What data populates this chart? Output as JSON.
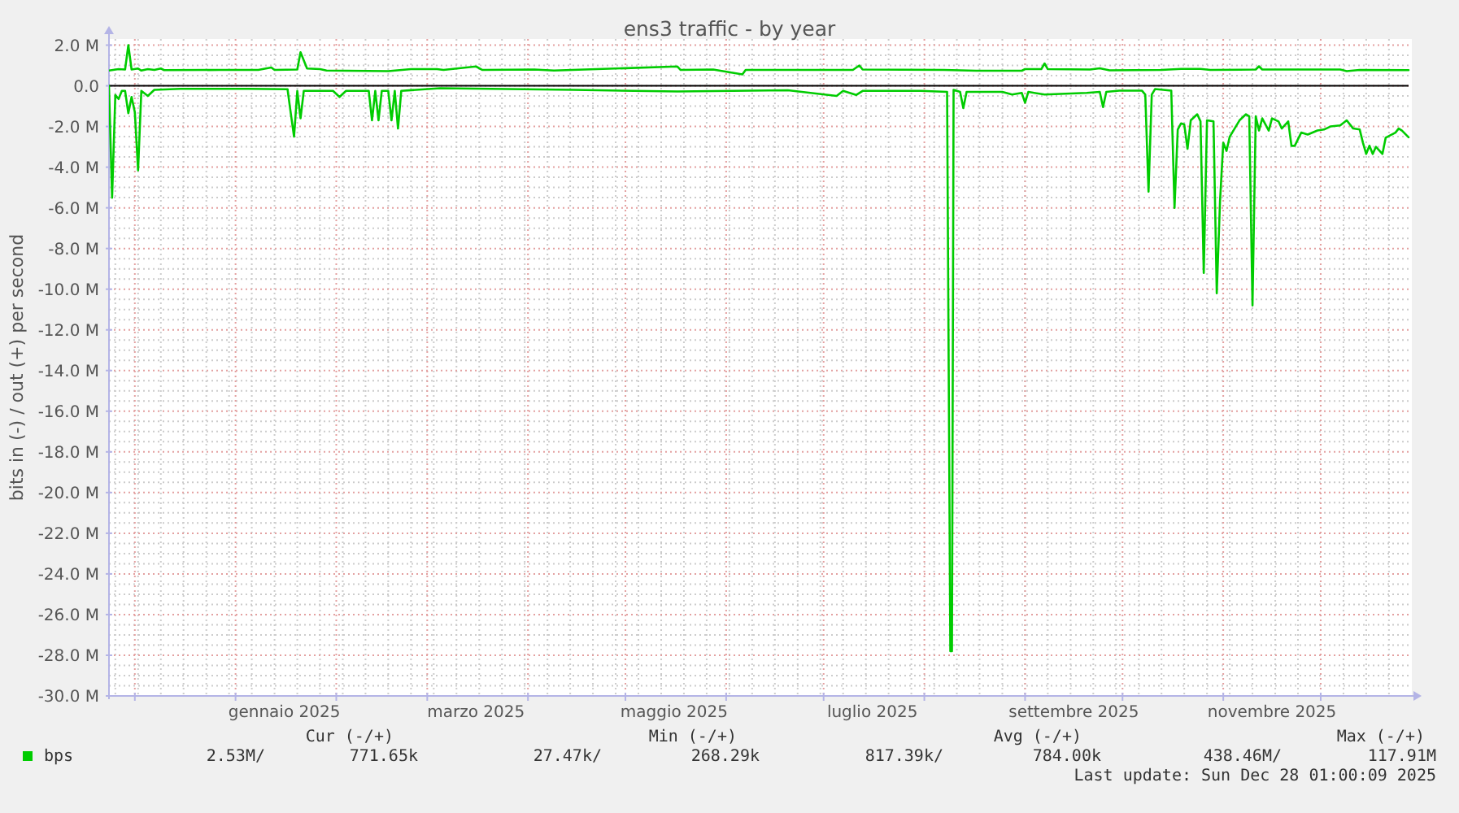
{
  "chart_data": {
    "type": "line",
    "title": "ens3 traffic - by year",
    "ylabel": "bits in (-) / out (+) per second",
    "xlim": [
      "2024-11-23T01:00",
      "2025-12-28T01:00"
    ],
    "xticks": [
      {
        "value": "2024-12-01",
        "label": null
      },
      {
        "value": "2025-01-01",
        "label": null
      },
      {
        "value": "2025-01-16",
        "label": "gennaio 2025"
      },
      {
        "value": "2025-02-01",
        "label": null
      },
      {
        "value": "2025-03-01",
        "label": null
      },
      {
        "value": "2025-03-16",
        "label": "marzo 2025"
      },
      {
        "value": "2025-04-01",
        "label": null
      },
      {
        "value": "2025-05-01",
        "label": null
      },
      {
        "value": "2025-05-16",
        "label": "maggio 2025"
      },
      {
        "value": "2025-06-01",
        "label": null
      },
      {
        "value": "2025-07-01",
        "label": null
      },
      {
        "value": "2025-07-16",
        "label": "luglio 2025"
      },
      {
        "value": "2025-08-01",
        "label": null
      },
      {
        "value": "2025-09-01",
        "label": null
      },
      {
        "value": "2025-09-16",
        "label": "settembre 2025"
      },
      {
        "value": "2025-10-01",
        "label": null
      },
      {
        "value": "2025-11-01",
        "label": null
      },
      {
        "value": "2025-11-16",
        "label": "novembre 2025"
      },
      {
        "value": "2025-12-01",
        "label": null
      }
    ],
    "ylim": [
      -30,
      2.3
    ],
    "yticks": [
      {
        "value": 2,
        "label": "2.0 M"
      },
      {
        "value": 0,
        "label": "0.0"
      },
      {
        "value": -2,
        "label": "-2.0 M"
      },
      {
        "value": -4,
        "label": "-4.0 M"
      },
      {
        "value": -6,
        "label": "-6.0 M"
      },
      {
        "value": -8,
        "label": "-8.0 M"
      },
      {
        "value": -10,
        "label": "-10.0 M"
      },
      {
        "value": -12,
        "label": "-12.0 M"
      },
      {
        "value": -14,
        "label": "-14.0 M"
      },
      {
        "value": -16,
        "label": "-16.0 M"
      },
      {
        "value": -18,
        "label": "-18.0 M"
      },
      {
        "value": -20,
        "label": "-20.0 M"
      },
      {
        "value": -22,
        "label": "-22.0 M"
      },
      {
        "value": -24,
        "label": "-24.0 M"
      },
      {
        "value": -26,
        "label": "-26.0 M"
      },
      {
        "value": -28,
        "label": "-28.0 M"
      },
      {
        "value": -30,
        "label": "-30.0 M"
      }
    ],
    "grid": true,
    "legend": "bottom left",
    "ref_lines": [
      {
        "axis": "y",
        "value": 0,
        "color": "#000000"
      }
    ],
    "annotations": [
      "Cur (-/+)",
      "Min (-/+)",
      "Avg (-/+)",
      "Max (-/+)",
      "2.53M/",
      "771.65k",
      "27.47k/",
      "268.29k",
      "817.39k/",
      "784.00k",
      "438.46M/",
      "117.91M",
      "Last update: Sun Dec 28 01:00:09 2025"
    ],
    "series": [
      {
        "name": "bps",
        "color": "#00cc00",
        "x": [
          "2024-11-23T01:00",
          "2024-11-26",
          "2024-11-28",
          "2024-11-29",
          "2024-11-30",
          "2024-12-02",
          "2024-12-03",
          "2024-12-05",
          "2024-12-07",
          "2024-12-09",
          "2024-12-10",
          "2024-12-27",
          "2025-01-08",
          "2025-01-12",
          "2025-01-13",
          "2025-01-20",
          "2025-01-21",
          "2025-01-23",
          "2025-01-27",
          "2025-01-29",
          "2025-02-17",
          "2025-02-24",
          "2025-03-04",
          "2025-03-06",
          "2025-03-16",
          "2025-03-18",
          "2025-04-03",
          "2025-04-09",
          "2025-05-17",
          "2025-05-18",
          "2025-05-28",
          "2025-06-06",
          "2025-06-07",
          "2025-07-10",
          "2025-07-12",
          "2025-07-13",
          "2025-08-07",
          "2025-08-17",
          "2025-08-31",
          "2025-09-01",
          "2025-09-06",
          "2025-09-07",
          "2025-09-08",
          "2025-09-21",
          "2025-09-24",
          "2025-09-27",
          "2025-10-13",
          "2025-10-19",
          "2025-10-25",
          "2025-10-28",
          "2025-11-11",
          "2025-11-12",
          "2025-11-13",
          "2025-12-07",
          "2025-12-09",
          "2025-12-13",
          "2025-12-28T01:00"
        ],
        "values": [
          0.75,
          0.82,
          0.8,
          2.0,
          0.8,
          0.85,
          0.75,
          0.82,
          0.78,
          0.85,
          0.77,
          0.78,
          0.78,
          0.9,
          0.78,
          0.8,
          1.65,
          0.85,
          0.82,
          0.75,
          0.72,
          0.82,
          0.82,
          0.78,
          0.95,
          0.78,
          0.8,
          0.75,
          0.95,
          0.78,
          0.8,
          0.56,
          0.78,
          0.78,
          1.0,
          0.8,
          0.78,
          0.74,
          0.74,
          0.82,
          0.82,
          1.1,
          0.82,
          0.8,
          0.86,
          0.76,
          0.78,
          0.83,
          0.83,
          0.78,
          0.8,
          0.96,
          0.8,
          0.8,
          0.72,
          0.78,
          0.77
        ]
      },
      {
        "color": "#00cc00",
        "x": [
          "2024-11-23T01:00",
          "2024-11-24",
          "2024-11-25",
          "2024-11-26",
          "2024-11-27",
          "2024-11-28",
          "2024-11-29",
          "2024-11-30",
          "2024-12-01",
          "2024-12-02",
          "2024-12-03",
          "2024-12-05",
          "2024-12-07",
          "2024-12-15",
          "2025-01-05",
          "2025-01-17",
          "2025-01-18",
          "2025-01-19",
          "2025-01-20",
          "2025-01-21",
          "2025-01-22",
          "2025-01-31",
          "2025-02-02",
          "2025-02-04",
          "2025-02-11",
          "2025-02-12",
          "2025-02-13",
          "2025-02-14",
          "2025-02-15",
          "2025-02-17",
          "2025-02-18",
          "2025-02-19",
          "2025-02-20",
          "2025-02-21",
          "2025-03-05",
          "2025-04-15",
          "2025-05-17",
          "2025-06-20",
          "2025-07-05",
          "2025-07-07",
          "2025-07-11",
          "2025-07-13",
          "2025-07-31",
          "2025-08-08",
          "2025-08-08T12:00",
          "2025-08-09",
          "2025-08-09T12:00",
          "2025-08-10",
          "2025-08-12",
          "2025-08-13",
          "2025-08-14",
          "2025-08-25",
          "2025-08-28",
          "2025-08-31",
          "2025-09-01",
          "2025-09-02",
          "2025-09-07",
          "2025-09-20",
          "2025-09-24",
          "2025-09-25",
          "2025-09-26",
          "2025-09-30",
          "2025-10-07",
          "2025-10-08",
          "2025-10-09",
          "2025-10-10",
          "2025-10-11",
          "2025-10-16",
          "2025-10-17",
          "2025-10-18",
          "2025-10-19",
          "2025-10-20",
          "2025-10-21",
          "2025-10-22",
          "2025-10-24",
          "2025-10-25",
          "2025-10-26",
          "2025-10-27",
          "2025-10-29",
          "2025-10-30",
          "2025-10-31",
          "2025-11-01",
          "2025-11-02",
          "2025-11-03",
          "2025-11-06",
          "2025-11-08",
          "2025-11-09",
          "2025-11-10",
          "2025-11-11",
          "2025-11-12",
          "2025-11-13",
          "2025-11-15",
          "2025-11-16",
          "2025-11-18",
          "2025-11-19",
          "2025-11-21",
          "2025-11-22",
          "2025-11-23",
          "2025-11-25",
          "2025-11-27",
          "2025-11-30",
          "2025-12-02",
          "2025-12-04",
          "2025-12-07",
          "2025-12-09",
          "2025-12-11",
          "2025-12-13",
          "2025-12-14",
          "2025-12-15",
          "2025-12-16",
          "2025-12-17",
          "2025-12-18",
          "2025-12-20",
          "2025-12-21",
          "2025-12-24",
          "2025-12-25",
          "2025-12-26",
          "2025-12-28T01:00"
        ],
        "values": [
          0,
          -5.5,
          -0.45,
          -0.65,
          -0.25,
          -0.25,
          -1.35,
          -0.55,
          -1.3,
          -4.15,
          -0.25,
          -0.5,
          -0.2,
          -0.15,
          -0.15,
          -0.17,
          -1.35,
          -2.5,
          -0.25,
          -1.6,
          -0.25,
          -0.25,
          -0.55,
          -0.25,
          -0.25,
          -1.7,
          -0.25,
          -1.7,
          -0.25,
          -0.25,
          -1.7,
          -0.25,
          -2.1,
          -0.25,
          -0.12,
          -0.2,
          -0.28,
          -0.22,
          -0.5,
          -0.25,
          -0.45,
          -0.25,
          -0.25,
          -0.3,
          -14.0,
          -27.8,
          -27.8,
          -0.2,
          -0.3,
          -1.1,
          -0.3,
          -0.3,
          -0.43,
          -0.35,
          -0.83,
          -0.3,
          -0.43,
          -0.35,
          -0.3,
          -1.05,
          -0.3,
          -0.24,
          -0.24,
          -0.43,
          -5.2,
          -0.43,
          -0.16,
          -0.24,
          -6.0,
          -2.15,
          -1.85,
          -1.9,
          -3.1,
          -1.7,
          -1.4,
          -1.75,
          -9.2,
          -1.7,
          -1.75,
          -10.2,
          -5.7,
          -2.8,
          -3.2,
          -2.5,
          -1.7,
          -1.4,
          -1.5,
          -10.8,
          -1.5,
          -2.2,
          -1.6,
          -2.2,
          -1.6,
          -1.75,
          -2.1,
          -1.75,
          -2.95,
          -2.95,
          -2.3,
          -2.4,
          -2.2,
          -2.15,
          -2.0,
          -1.95,
          -1.7,
          -2.1,
          -2.15,
          -2.8,
          -3.35,
          -2.95,
          -3.35,
          -3.0,
          -3.35,
          -2.55,
          -2.3,
          -2.1,
          -2.2,
          -2.53
        ]
      }
    ]
  }
}
